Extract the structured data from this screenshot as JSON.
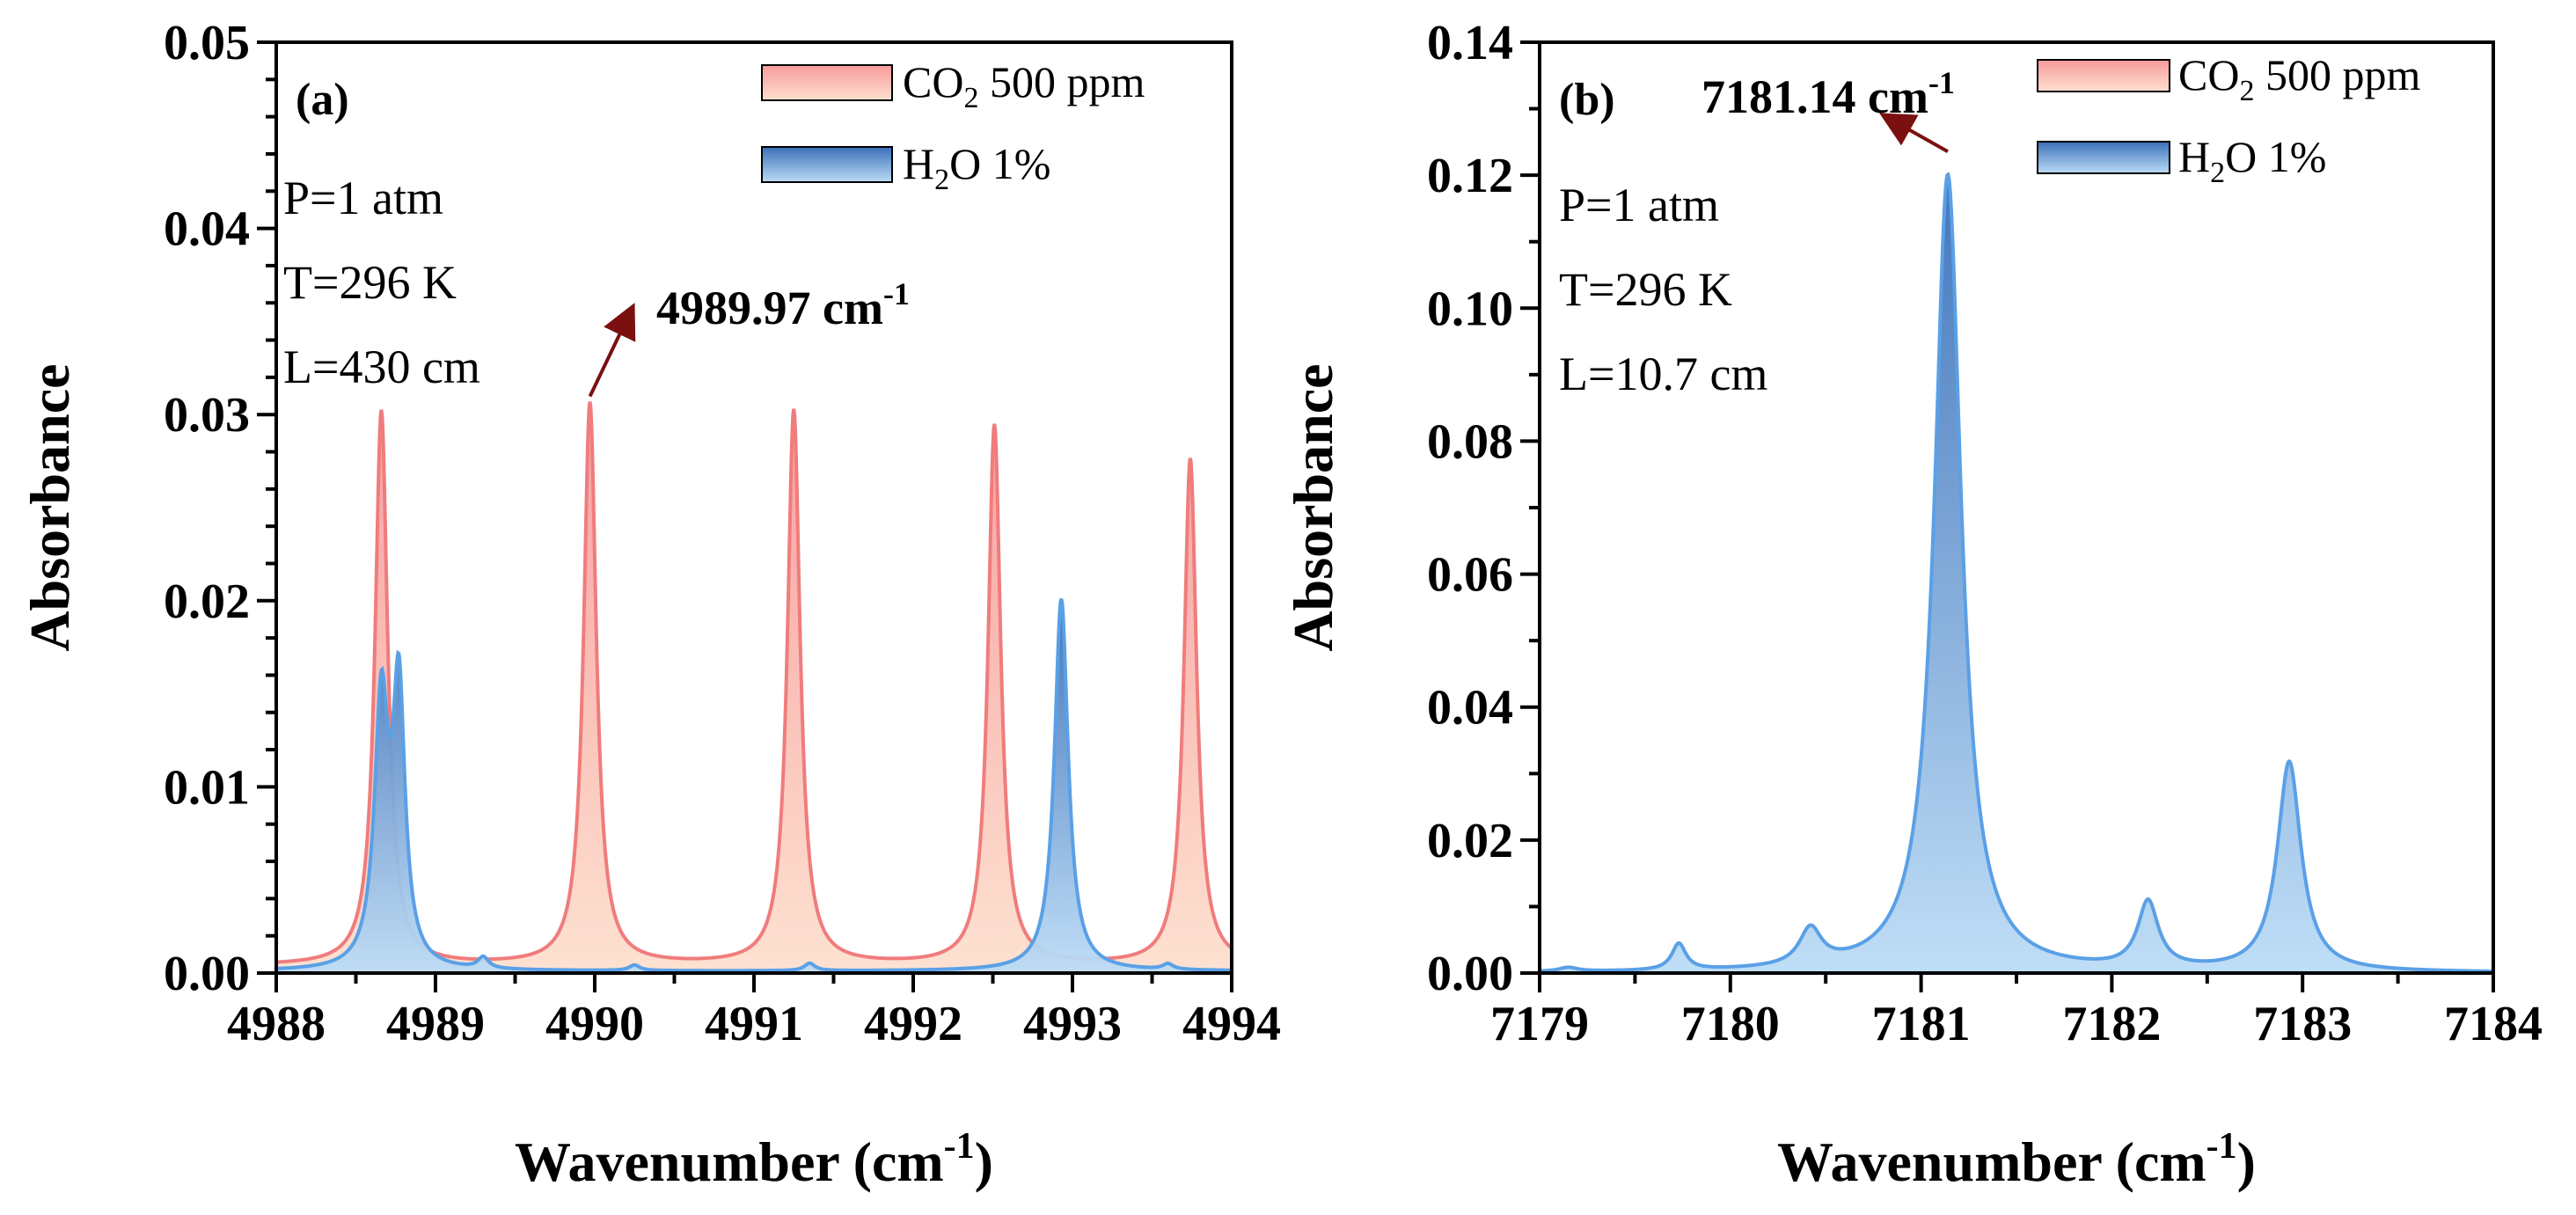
{
  "colors": {
    "co2_line": "#f07c7c",
    "co2_fill_top": "#f79a9a",
    "co2_fill_bottom": "#fde0cf",
    "h2o_line": "#5aa0e6",
    "h2o_fill_top": "#3a6fb8",
    "h2o_fill_bottom": "#bcdcf6",
    "arrow": "#7a1010"
  },
  "axis_title_x_main": "Wavenumber (cm",
  "axis_title_x_sup": "-1",
  "axis_title_x_close": ")",
  "axis_title_y": "Absorbance",
  "chart_data": [
    {
      "type": "area",
      "panel_label": "(a)",
      "xlabel": "Wavenumber (cm-1)",
      "ylabel": "Absorbance",
      "xlim": [
        4988,
        4994
      ],
      "ylim": [
        0,
        0.05
      ],
      "x_ticks": [
        "4988",
        "4989",
        "4990",
        "4991",
        "4992",
        "4993",
        "4994"
      ],
      "y_ticks": [
        "0.00",
        "0.01",
        "0.02",
        "0.03",
        "0.04",
        "0.05"
      ],
      "conditions": [
        "P=1 atm",
        "T=296 K",
        "L=430 cm"
      ],
      "legend": [
        {
          "label_main": "CO",
          "label_sub": "2",
          "label_rest": " 500 ppm",
          "series": "co2"
        },
        {
          "label_main": "H",
          "label_sub": "2",
          "label_rest": "O 1%",
          "series": "h2o"
        }
      ],
      "legend_position": "top-right",
      "annotation": {
        "text": "4989.97 cm",
        "sup": "-1",
        "x": 4989.97,
        "y": 0.0306
      },
      "series": [
        {
          "name": "CO2 500 ppm",
          "baseline": 0.0004,
          "peaks": [
            {
              "x": 4988.66,
              "height": 0.0298,
              "width": 0.048
            },
            {
              "x": 4989.97,
              "height": 0.0302,
              "width": 0.048
            },
            {
              "x": 4991.25,
              "height": 0.0298,
              "width": 0.048
            },
            {
              "x": 4992.51,
              "height": 0.029,
              "width": 0.048
            },
            {
              "x": 4993.74,
              "height": 0.0272,
              "width": 0.048
            }
          ]
        },
        {
          "name": "H2O 1%",
          "baseline": 0.0001,
          "peaks": [
            {
              "x": 4988.66,
              "height": 0.014,
              "width": 0.052
            },
            {
              "x": 4988.77,
              "height": 0.0145,
              "width": 0.046
            },
            {
              "x": 4989.3,
              "height": 0.0006,
              "width": 0.04
            },
            {
              "x": 4990.25,
              "height": 0.0003,
              "width": 0.04
            },
            {
              "x": 4991.35,
              "height": 0.0004,
              "width": 0.04
            },
            {
              "x": 4992.93,
              "height": 0.02,
              "width": 0.052
            },
            {
              "x": 4993.6,
              "height": 0.0003,
              "width": 0.04
            }
          ]
        }
      ]
    },
    {
      "type": "area",
      "panel_label": "(b)",
      "xlabel": "Wavenumber (cm-1)",
      "ylabel": "Absorbance",
      "xlim": [
        7179,
        7184
      ],
      "ylim": [
        0,
        0.14
      ],
      "x_ticks": [
        "7179",
        "7180",
        "7181",
        "7182",
        "7183",
        "7184"
      ],
      "y_ticks": [
        "0.00",
        "0.02",
        "0.04",
        "0.06",
        "0.08",
        "0.10",
        "0.12",
        "0.14"
      ],
      "conditions": [
        "P=1 atm",
        "T=296 K",
        "L=10.7 cm"
      ],
      "legend": [
        {
          "label_main": "CO",
          "label_sub": "2",
          "label_rest": " 500 ppm",
          "series": "co2"
        },
        {
          "label_main": "H",
          "label_sub": "2",
          "label_rest": "O 1%",
          "series": "h2o"
        }
      ],
      "legend_position": "top-right",
      "annotation": {
        "text": "7181.14 cm",
        "sup": "-1",
        "x": 7181.14,
        "y": 0.1225
      },
      "series": [
        {
          "name": "CO2 500 ppm",
          "baseline": 0.0,
          "peaks": []
        },
        {
          "name": "H2O 1%",
          "baseline": 0.0,
          "peaks": [
            {
              "x": 7179.15,
              "height": 0.0006,
              "width": 0.06
            },
            {
              "x": 7179.73,
              "height": 0.004,
              "width": 0.045
            },
            {
              "x": 7180.42,
              "height": 0.0055,
              "width": 0.07
            },
            {
              "x": 7181.14,
              "height": 0.12,
              "width": 0.085
            },
            {
              "x": 7182.19,
              "height": 0.01,
              "width": 0.065
            },
            {
              "x": 7182.93,
              "height": 0.0315,
              "width": 0.075
            }
          ]
        }
      ]
    }
  ]
}
